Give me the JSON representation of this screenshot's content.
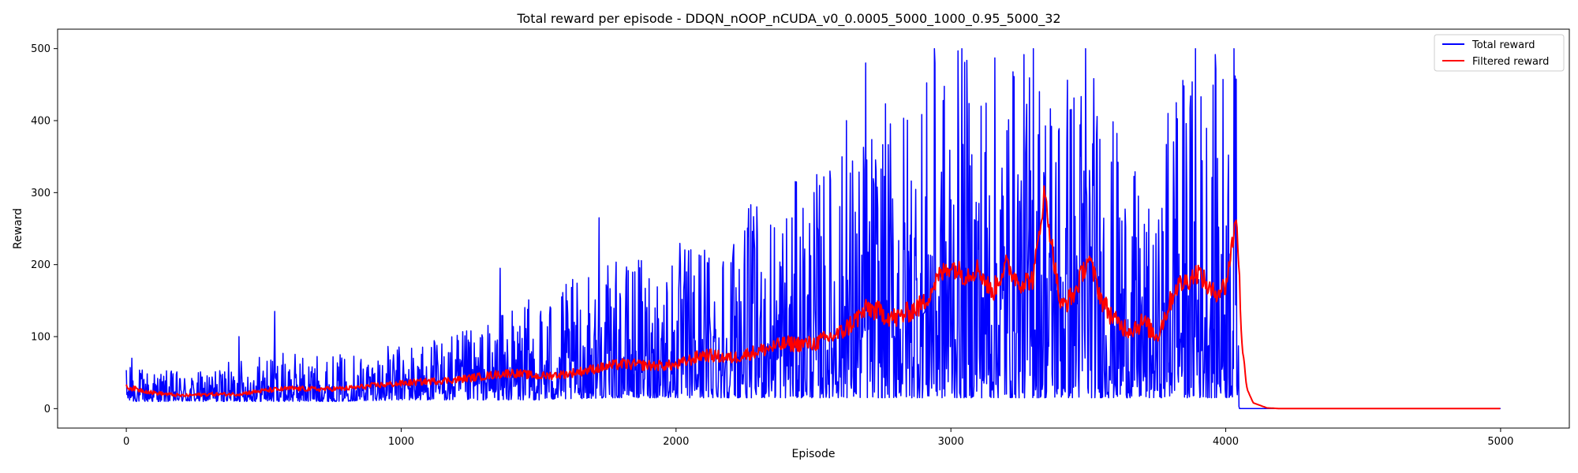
{
  "chart_data": {
    "type": "line",
    "title": "Total reward per episode - DDQN_nOOP_nCUDA_v0_0.0005_5000_1000_0.95_5000_32",
    "xlabel": "Episode",
    "ylabel": "Reward",
    "xlim": [
      -250,
      5250
    ],
    "ylim": [
      -27,
      527
    ],
    "xticks": [
      0,
      1000,
      2000,
      3000,
      4000,
      5000
    ],
    "yticks": [
      0,
      100,
      200,
      300,
      400,
      500
    ],
    "grid": false,
    "legend_position": "top-right",
    "series": [
      {
        "name": "Total reward",
        "color": "#0000ff",
        "envelope_episodes": [
          0,
          250,
          500,
          750,
          1000,
          1250,
          1500,
          1750,
          2000,
          2250,
          2500,
          2750,
          3000,
          3250,
          3500,
          3750,
          3800,
          4000,
          4040,
          4050,
          5000
        ],
        "envelope_low": [
          10,
          10,
          10,
          10,
          12,
          12,
          12,
          15,
          15,
          15,
          15,
          15,
          15,
          15,
          15,
          15,
          15,
          15,
          15,
          0,
          0
        ],
        "envelope_high": [
          60,
          50,
          80,
          75,
          90,
          110,
          160,
          200,
          230,
          280,
          330,
          420,
          500,
          500,
          500,
          250,
          470,
          500,
          500,
          0,
          0
        ],
        "spikes": [
          {
            "episode": 20,
            "value": 70
          },
          {
            "episode": 410,
            "value": 100
          },
          {
            "episode": 540,
            "value": 135
          },
          {
            "episode": 1360,
            "value": 195
          },
          {
            "episode": 1720,
            "value": 265
          },
          {
            "episode": 2620,
            "value": 400
          },
          {
            "episode": 2690,
            "value": 480
          },
          {
            "episode": 2940,
            "value": 500
          },
          {
            "episode": 3040,
            "value": 500
          },
          {
            "episode": 3300,
            "value": 500
          },
          {
            "episode": 3490,
            "value": 500
          },
          {
            "episode": 3790,
            "value": 410
          },
          {
            "episode": 3820,
            "value": 425
          },
          {
            "episode": 3890,
            "value": 500
          },
          {
            "episode": 4030,
            "value": 500
          }
        ]
      },
      {
        "name": "Filtered reward",
        "color": "#ff0000",
        "x": [
          0,
          100,
          200,
          300,
          400,
          500,
          600,
          700,
          800,
          900,
          1000,
          1100,
          1200,
          1300,
          1400,
          1500,
          1600,
          1700,
          1800,
          1900,
          2000,
          2100,
          2200,
          2300,
          2400,
          2500,
          2600,
          2700,
          2800,
          2900,
          2950,
          3000,
          3050,
          3100,
          3150,
          3200,
          3250,
          3300,
          3340,
          3400,
          3450,
          3500,
          3550,
          3600,
          3650,
          3700,
          3750,
          3780,
          3820,
          3850,
          3900,
          3950,
          4000,
          4040,
          4060,
          4080,
          4100,
          4150,
          4200,
          5000
        ],
        "y": [
          30,
          22,
          18,
          20,
          20,
          25,
          28,
          27,
          28,
          32,
          35,
          38,
          40,
          45,
          50,
          45,
          48,
          55,
          62,
          60,
          60,
          75,
          70,
          80,
          90,
          90,
          105,
          140,
          125,
          145,
          180,
          200,
          185,
          195,
          160,
          200,
          175,
          180,
          300,
          140,
          160,
          210,
          150,
          120,
          110,
          120,
          100,
          130,
          170,
          175,
          190,
          160,
          170,
          270,
          80,
          25,
          8,
          1,
          0,
          0
        ]
      }
    ]
  }
}
